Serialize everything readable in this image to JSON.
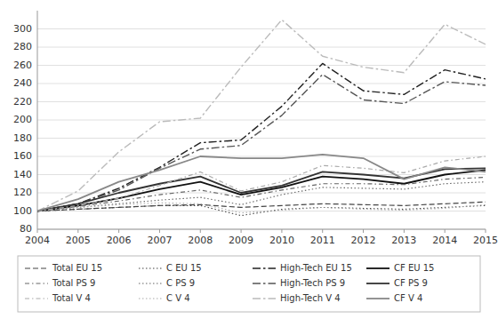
{
  "chart_data": {
    "type": "line",
    "x": [
      2004,
      2005,
      2006,
      2007,
      2008,
      2009,
      2010,
      2011,
      2012,
      2013,
      2014,
      2015
    ],
    "xlim": [
      2004,
      2015
    ],
    "xticks": [
      2004,
      2005,
      2006,
      2007,
      2008,
      2009,
      2010,
      2011,
      2012,
      2013,
      2014,
      2015
    ],
    "ylim": [
      80,
      320
    ],
    "yticks": [
      80,
      100,
      120,
      140,
      160,
      180,
      200,
      220,
      240,
      260,
      280,
      300
    ],
    "grid": true,
    "legend": "bottom",
    "series": [
      {
        "name": "Total EU 15",
        "color": "#444444",
        "line_style": "dashed",
        "values": [
          100,
          102,
          104,
          106,
          107,
          104,
          106,
          108,
          107,
          106,
          108,
          110
        ]
      },
      {
        "name": "C EU 15",
        "color": "#444444",
        "line_style": "dotted",
        "values": [
          100,
          102,
          104,
          106,
          106,
          95,
          102,
          104,
          103,
          102,
          104,
          106
        ]
      },
      {
        "name": "High-Tech EU 15",
        "color": "#222222",
        "line_style": "longdashdot",
        "values": [
          100,
          108,
          125,
          148,
          175,
          178,
          215,
          262,
          232,
          228,
          255,
          245
        ]
      },
      {
        "name": "CF EU 15",
        "color": "#111111",
        "line_style": "solid",
        "values": [
          100,
          106,
          114,
          124,
          132,
          118,
          126,
          138,
          135,
          130,
          140,
          145
        ]
      },
      {
        "name": "Total PS 9",
        "color": "#666666",
        "line_style": "dashdot",
        "values": [
          100,
          105,
          111,
          118,
          123,
          115,
          123,
          130,
          130,
          129,
          135,
          137
        ]
      },
      {
        "name": "C PS 9",
        "color": "#666666",
        "line_style": "dotted",
        "values": [
          100,
          104,
          108,
          112,
          115,
          107,
          118,
          126,
          125,
          124,
          130,
          132
        ]
      },
      {
        "name": "High-Tech PS 9",
        "color": "#555555",
        "line_style": "longdashdot",
        "values": [
          100,
          108,
          123,
          147,
          168,
          172,
          205,
          250,
          222,
          218,
          242,
          238
        ]
      },
      {
        "name": "CF PS 9",
        "color": "#333333",
        "line_style": "solid",
        "values": [
          100,
          108,
          120,
          130,
          138,
          120,
          128,
          143,
          140,
          136,
          146,
          147
        ]
      },
      {
        "name": "Total V 4",
        "color": "#aaaaaa",
        "line_style": "dashdot",
        "values": [
          100,
          106,
          114,
          128,
          143,
          122,
          132,
          150,
          147,
          142,
          155,
          160
        ]
      },
      {
        "name": "C V 4",
        "color": "#aaaaaa",
        "line_style": "dotted",
        "values": [
          100,
          104,
          107,
          109,
          108,
          98,
          101,
          104,
          102,
          101,
          103,
          107
        ]
      },
      {
        "name": "High-Tech V 4",
        "color": "#bbbbbb",
        "line_style": "longdashdot",
        "values": [
          100,
          122,
          165,
          198,
          202,
          258,
          310,
          270,
          258,
          252,
          305,
          283
        ]
      },
      {
        "name": "CF V 4",
        "color": "#888888",
        "line_style": "solid",
        "values": [
          100,
          113,
          132,
          145,
          160,
          158,
          158,
          162,
          158,
          135,
          148,
          143
        ]
      }
    ]
  }
}
